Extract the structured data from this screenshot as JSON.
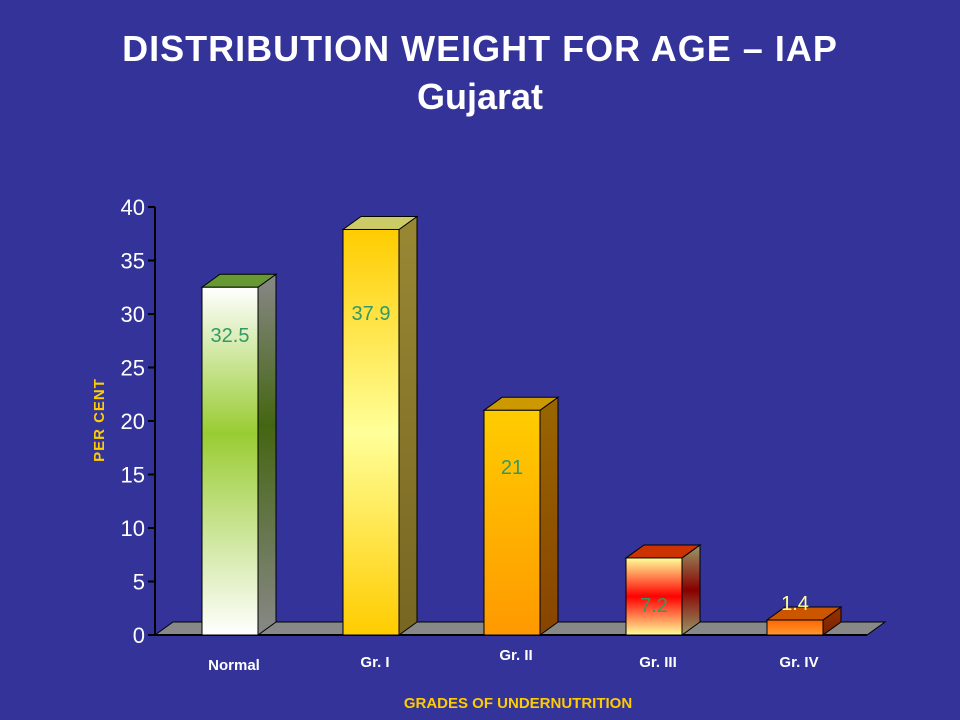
{
  "colors": {
    "background": "#333399",
    "text": "#ffffff",
    "axis_label": "#ffcc00",
    "data_label": "#339966"
  },
  "chart_data": {
    "type": "bar",
    "title": "DISTRIBUTION WEIGHT FOR AGE – IAP",
    "subtitle": "Gujarat",
    "xlabel": "GRADES OF UNDERNUTRITION",
    "ylabel": "PER CENT",
    "categories": [
      "Normal",
      "Gr. I",
      "Gr. II",
      "Gr. III",
      "Gr. IV"
    ],
    "values": [
      32.5,
      37.9,
      21,
      7.2,
      1.4
    ],
    "data_labels": [
      "32.5",
      "37.9",
      "21",
      "7.2",
      "1.4"
    ],
    "ylim": [
      0,
      40
    ],
    "yticks": [
      0,
      5,
      10,
      15,
      20,
      25,
      30,
      35,
      40
    ],
    "grid": false,
    "legend": "none",
    "style": "3d-bar"
  }
}
